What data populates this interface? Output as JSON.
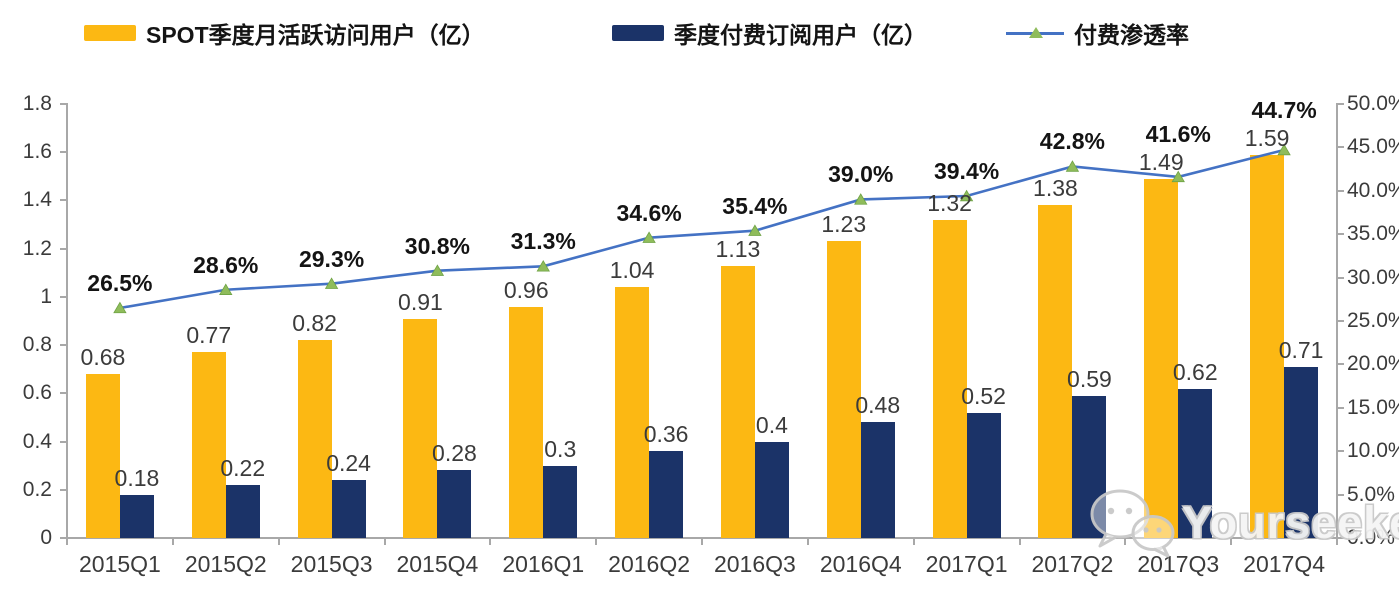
{
  "legend": {
    "items": [
      {
        "label": "SPOT季度月活跃访问用户（亿）",
        "type": "bar",
        "color": "#FCB813"
      },
      {
        "label": "季度付费订阅用户（亿）",
        "type": "bar",
        "color": "#1B3368"
      },
      {
        "label": "付费渗透率",
        "type": "line",
        "color": "#4472C4",
        "marker_color": "#8FBC5B"
      }
    ]
  },
  "watermark": {
    "text": "Yourseeker",
    "icon": "wechat-logo"
  },
  "chart_data": {
    "type": "bar",
    "subtype": "grouped-bars-with-line",
    "title": "",
    "categories": [
      "2015Q1",
      "2015Q2",
      "2015Q3",
      "2015Q4",
      "2016Q1",
      "2016Q2",
      "2016Q3",
      "2016Q4",
      "2017Q1",
      "2017Q2",
      "2017Q3",
      "2017Q4"
    ],
    "series": [
      {
        "name": "SPOT季度月活跃访问用户（亿）",
        "type": "bar",
        "axis": "left",
        "color": "#FCB813",
        "values": [
          0.68,
          0.77,
          0.82,
          0.91,
          0.96,
          1.04,
          1.13,
          1.23,
          1.32,
          1.38,
          1.49,
          1.59
        ],
        "labels": [
          "0.68",
          "0.77",
          "0.82",
          "0.91",
          "0.96",
          "1.04",
          "1.13",
          "1.23",
          "1.32",
          "1.38",
          "1.49",
          "1.59"
        ]
      },
      {
        "name": "季度付费订阅用户（亿）",
        "type": "bar",
        "axis": "left",
        "color": "#1B3368",
        "values": [
          0.18,
          0.22,
          0.24,
          0.28,
          0.3,
          0.36,
          0.4,
          0.48,
          0.52,
          0.59,
          0.62,
          0.71
        ],
        "labels": [
          "0.18",
          "0.22",
          "0.24",
          "0.28",
          "0.3",
          "0.36",
          "0.4",
          "0.48",
          "0.52",
          "0.59",
          "0.62",
          "0.71"
        ]
      },
      {
        "name": "付费渗透率",
        "type": "line",
        "axis": "right",
        "color": "#4472C4",
        "marker": "triangle",
        "marker_color": "#8FBC5B",
        "values": [
          26.5,
          28.6,
          29.3,
          30.8,
          31.3,
          34.6,
          35.4,
          39.0,
          39.4,
          42.8,
          41.6,
          44.7
        ],
        "labels": [
          "26.5%",
          "28.6%",
          "29.3%",
          "30.8%",
          "31.3%",
          "34.6%",
          "35.4%",
          "39.0%",
          "39.4%",
          "42.8%",
          "41.6%",
          "44.7%"
        ]
      }
    ],
    "left_axis": {
      "min": 0,
      "max": 1.8,
      "step": 0.2,
      "tick_labels": [
        "0",
        "0.2",
        "0.4",
        "0.6",
        "0.8",
        "1",
        "1.2",
        "1.4",
        "1.6",
        "1.8"
      ]
    },
    "right_axis": {
      "min": 0,
      "max": 50,
      "step": 5,
      "tick_labels": [
        "0.0%",
        "5.0%",
        "10.0%",
        "15.0%",
        "20.0%",
        "25.0%",
        "30.0%",
        "35.0%",
        "40.0%",
        "45.0%",
        "50.0%"
      ]
    },
    "grid": false,
    "legend_position": "top",
    "axis_color": "#a8a8a8"
  }
}
